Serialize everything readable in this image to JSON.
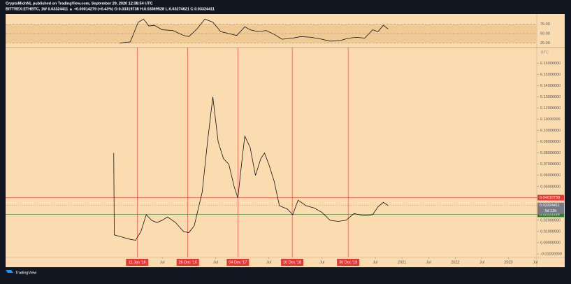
{
  "header": {
    "publisher": "CryptoMichNL published on TradingView.com, September 29, 2020 12:38:54 UTC",
    "symbol": "BITTREX:ETHBTC, 1W 0.03324411 ▲ +0.00014279 (+0.43%) O:0.03319738 H:0.03369528 L:0.03274621 C:0.03324411"
  },
  "footer": {
    "brand": "TradingView"
  },
  "chart_data": [
    {
      "type": "line",
      "x": [
        2015.7,
        2015.9,
        2016.05,
        2016.15,
        2016.25,
        2016.35,
        2016.5,
        2016.7,
        2016.9,
        2017.0,
        2017.15,
        2017.3,
        2017.45,
        2017.6,
        2017.75,
        2017.9,
        2018.05,
        2018.15,
        2018.3,
        2018.45,
        2018.6,
        2018.75,
        2018.95,
        2019.1,
        2019.3,
        2019.5,
        2019.65,
        2019.85,
        2020.0,
        2020.15,
        2020.3,
        2020.45,
        2020.55,
        2020.65,
        2020.74
      ],
      "series": [
        {
          "color": "#111111",
          "values": [
            25,
            28,
            80,
            88,
            70,
            72,
            60,
            58,
            45,
            42,
            62,
            88,
            80,
            55,
            50,
            45,
            68,
            60,
            55,
            58,
            48,
            35,
            38,
            42,
            40,
            35,
            30,
            32,
            38,
            40,
            38,
            60,
            55,
            72,
            62
          ]
        }
      ],
      "xlim": [
        2013.56,
        2023.53
      ],
      "ylim": [
        13,
        98
      ],
      "yticks": [
        {
          "value": 75,
          "label": "75.00"
        },
        {
          "value": 50,
          "label": "50.00"
        },
        {
          "value": 25,
          "label": "25.00"
        }
      ],
      "band": [
        25,
        75
      ],
      "band_color": "#efca94"
    },
    {
      "type": "line",
      "unit_label": "BTC",
      "x": [
        2015.59,
        2015.6,
        2015.75,
        2015.9,
        2016.0,
        2016.1,
        2016.2,
        2016.3,
        2016.4,
        2016.5,
        2016.6,
        2016.75,
        2016.9,
        2017.0,
        2017.1,
        2017.25,
        2017.35,
        2017.45,
        2017.55,
        2017.65,
        2017.75,
        2017.85,
        2017.92,
        2018.0,
        2018.05,
        2018.15,
        2018.25,
        2018.35,
        2018.42,
        2018.5,
        2018.6,
        2018.7,
        2018.85,
        2018.95,
        2019.05,
        2019.2,
        2019.35,
        2019.5,
        2019.65,
        2019.8,
        2019.95,
        2020.1,
        2020.3,
        2020.45,
        2020.55,
        2020.65,
        2020.74
      ],
      "series": [
        {
          "color": "#111111",
          "values": [
            0.08,
            0.007,
            0.005,
            0.003,
            0.0022,
            0.01,
            0.025,
            0.02,
            0.018,
            0.02,
            0.023,
            0.018,
            0.01,
            0.009,
            0.015,
            0.045,
            0.09,
            0.13,
            0.09,
            0.075,
            0.07,
            0.05,
            0.04,
            0.075,
            0.095,
            0.085,
            0.06,
            0.075,
            0.08,
            0.07,
            0.055,
            0.033,
            0.03,
            0.025,
            0.038,
            0.033,
            0.031,
            0.027,
            0.02,
            0.019,
            0.02,
            0.026,
            0.024,
            0.025,
            0.032,
            0.036,
            0.0332
          ]
        }
      ],
      "xlim": [
        2013.56,
        2023.53
      ],
      "ylim": [
        -0.0131,
        0.174
      ],
      "yticks": [
        {
          "value": 0.16,
          "label": "0.16000000"
        },
        {
          "value": 0.15,
          "label": "0.15000000"
        },
        {
          "value": 0.14,
          "label": "0.14000000"
        },
        {
          "value": 0.13,
          "label": "0.13000000"
        },
        {
          "value": 0.12,
          "label": "0.12000000"
        },
        {
          "value": 0.11,
          "label": "0.11000000"
        },
        {
          "value": 0.1,
          "label": "0.10000000"
        },
        {
          "value": 0.09,
          "label": "0.09000000"
        },
        {
          "value": 0.08,
          "label": "0.08000000"
        },
        {
          "value": 0.07,
          "label": "0.07000000"
        },
        {
          "value": 0.06,
          "label": "0.06000000"
        },
        {
          "value": 0.05,
          "label": "0.05000000"
        },
        {
          "value": 0.02,
          "label": "0.02000000"
        },
        {
          "value": 0.01,
          "label": "0.01000000"
        },
        {
          "value": 0,
          "label": "0.00000000"
        },
        {
          "value": -0.01,
          "label": "-0.01000000"
        }
      ],
      "xticks": [
        {
          "value": 2016.5,
          "label": "Jul"
        },
        {
          "value": 2017.5,
          "label": "Jul"
        },
        {
          "value": 2018.5,
          "label": "Jul"
        },
        {
          "value": 2019.5,
          "label": "Jul"
        },
        {
          "value": 2020.5,
          "label": "Jul"
        },
        2021,
        {
          "value": 2021.5,
          "label": "Jul"
        },
        2022,
        {
          "value": 2022.5,
          "label": "Jul"
        },
        2023,
        {
          "value": 2023.5,
          "label": "Jul"
        }
      ],
      "vlines": [
        {
          "x": 2016.03,
          "label": "11 Jan '16"
        },
        {
          "x": 2016.98,
          "label": "26 Dec '16"
        },
        {
          "x": 2017.92,
          "label": "04 Dec '17"
        },
        {
          "x": 2018.94,
          "label": "10 Dec '18"
        },
        {
          "x": 2019.99,
          "label": "30 Dec '19"
        }
      ],
      "vline_color": "#e53935",
      "hlines": [
        {
          "value": 0.04018739,
          "color": "#e53935"
        },
        {
          "value": 0.02531196,
          "color": "#2e7d32"
        }
      ],
      "last": {
        "value": 0.03324411,
        "countdown": "5d 13h",
        "color": "#787b86"
      }
    }
  ]
}
